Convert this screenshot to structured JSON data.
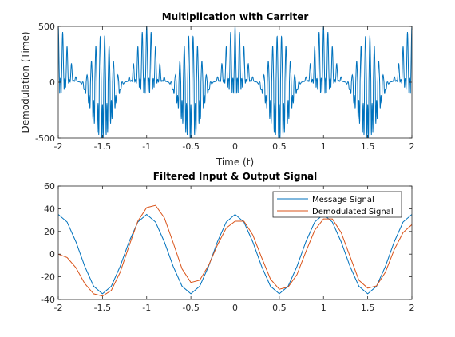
{
  "colors": {
    "series_1": "#0072BD",
    "series_2": "#D95319",
    "axes": "#262626",
    "background": "#ffffff"
  },
  "chart_data": [
    {
      "type": "line",
      "title": "Multiplication with Carriter",
      "xlabel": "Time (t)",
      "ylabel": "Demodulation (Time)",
      "xlim": [
        -2,
        2
      ],
      "ylim": [
        -500,
        500
      ],
      "xticks": [
        -2,
        -1.5,
        -1,
        -0.5,
        0,
        0.5,
        1,
        1.5,
        2
      ],
      "xtick_labels": [
        "-2",
        "-1.5",
        "-1",
        "-0.5",
        "0",
        "0.5",
        "1",
        "1.5",
        "2"
      ],
      "yticks": [
        -500,
        0,
        500
      ],
      "ytick_labels": [
        "-500",
        "0",
        "500"
      ],
      "grid": false,
      "legend": null,
      "series": [
        {
          "color": "#0072BD",
          "message_period": 1,
          "carrier_frequency": 20,
          "envelope_peak": 500,
          "offset_at_envelope_trough": -40,
          "offset_at_envelope_peak": 40
        }
      ]
    },
    {
      "type": "line",
      "title": "Filtered Input & Output Signal",
      "xlabel": "",
      "ylabel": "",
      "xlim": [
        -2,
        2
      ],
      "ylim": [
        -40,
        60
      ],
      "xticks": [
        -2,
        -1.5,
        -1,
        -0.5,
        0,
        0.5,
        1,
        1.5,
        2
      ],
      "xtick_labels": [
        "-2",
        "-1.5",
        "-1",
        "-0.5",
        "0",
        "0.5",
        "1",
        "1.5",
        "2"
      ],
      "yticks": [
        -40,
        -20,
        0,
        20,
        40,
        60
      ],
      "ytick_labels": [
        "-40",
        "-20",
        "0",
        "20",
        "40",
        "60"
      ],
      "grid": false,
      "legend": "top-right",
      "series": [
        {
          "name": "Message Signal",
          "color": "#0072BD",
          "x": [
            -2.0,
            -1.9,
            -1.8,
            -1.7,
            -1.6,
            -1.5,
            -1.4,
            -1.3,
            -1.2,
            -1.1,
            -1.0,
            -0.9,
            -0.8,
            -0.7,
            -0.6,
            -0.5,
            -0.4,
            -0.3,
            -0.2,
            -0.1,
            0.0,
            0.1,
            0.2,
            0.3,
            0.4,
            0.5,
            0.6,
            0.7,
            0.8,
            0.9,
            1.0,
            1.1,
            1.2,
            1.3,
            1.4,
            1.5,
            1.6,
            1.7,
            1.8,
            1.9,
            2.0
          ],
          "y": [
            35,
            28.3,
            10.8,
            -10.8,
            -28.3,
            -35,
            -28.3,
            -10.8,
            10.8,
            28.3,
            35,
            28.3,
            10.8,
            -10.8,
            -28.3,
            -35,
            -28.3,
            -10.8,
            10.8,
            28.3,
            35,
            28.3,
            10.8,
            -10.8,
            -28.3,
            -35,
            -28.3,
            -10.8,
            10.8,
            28.3,
            35,
            28.3,
            10.8,
            -10.8,
            -28.3,
            -35,
            -28.3,
            -10.8,
            10.8,
            28.3,
            35
          ]
        },
        {
          "name": "Demodulated Signal",
          "color": "#D95319",
          "x": [
            -2.0,
            -1.9,
            -1.8,
            -1.7,
            -1.6,
            -1.5,
            -1.4,
            -1.3,
            -1.2,
            -1.1,
            -1.0,
            -0.9,
            -0.8,
            -0.7,
            -0.6,
            -0.5,
            -0.4,
            -0.3,
            -0.2,
            -0.1,
            0.0,
            0.1,
            0.2,
            0.3,
            0.4,
            0.5,
            0.6,
            0.7,
            0.8,
            0.9,
            1.0,
            1.1,
            1.2,
            1.3,
            1.4,
            1.5,
            1.6,
            1.7,
            1.8,
            1.9,
            2.0
          ],
          "y": [
            0,
            -3,
            -12,
            -26,
            -35,
            -37,
            -32,
            -16,
            7,
            29,
            41,
            43,
            32,
            10,
            -13,
            -25,
            -23,
            -10,
            8,
            23,
            29,
            29,
            17,
            -3,
            -22,
            -31,
            -29,
            -18,
            2,
            21,
            31,
            31,
            19,
            -2,
            -23,
            -30,
            -28,
            -16,
            4,
            19,
            26
          ]
        }
      ]
    }
  ]
}
